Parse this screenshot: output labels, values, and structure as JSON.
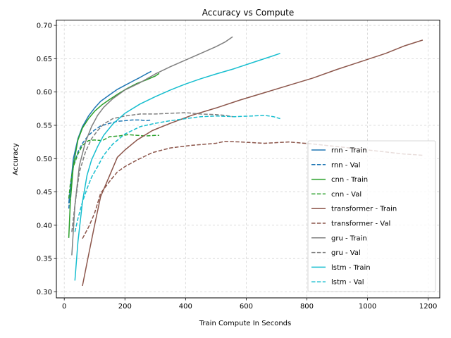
{
  "chart_data": {
    "type": "line",
    "title": "Accuracy vs Compute",
    "xlabel": "Train Compute In Seconds",
    "ylabel": "Accuracy",
    "xlim": [
      -26,
      1238
    ],
    "ylim": [
      0.291,
      0.708
    ],
    "xticks": [
      0,
      200,
      400,
      600,
      800,
      1000,
      1200
    ],
    "yticks": [
      0.3,
      0.35,
      0.4,
      0.45,
      0.5,
      0.55,
      0.6,
      0.65,
      0.7
    ],
    "xtick_labels": [
      "0",
      "200",
      "400",
      "600",
      "800",
      "1000",
      "1200"
    ],
    "ytick_labels": [
      "0.30",
      "0.35",
      "0.40",
      "0.45",
      "0.50",
      "0.55",
      "0.60",
      "0.65",
      "0.70"
    ],
    "grid": true,
    "legend_position": "lower-right",
    "series": [
      {
        "name": "rnn - Train",
        "color": "#1f77b4",
        "style": "solid",
        "x": [
          15,
          20,
          30,
          45,
          60,
          80,
          100,
          120,
          150,
          175,
          200,
          225,
          250,
          270,
          287
        ],
        "y": [
          0.433,
          0.455,
          0.5,
          0.53,
          0.548,
          0.564,
          0.576,
          0.586,
          0.596,
          0.604,
          0.61,
          0.616,
          0.622,
          0.627,
          0.631
        ]
      },
      {
        "name": "rnn - Val",
        "color": "#1f77b4",
        "style": "dashed",
        "x": [
          15,
          20,
          30,
          45,
          60,
          80,
          100,
          120,
          150,
          175,
          200,
          225,
          250,
          270,
          287
        ],
        "y": [
          0.425,
          0.45,
          0.488,
          0.51,
          0.523,
          0.535,
          0.543,
          0.549,
          0.553,
          0.556,
          0.557,
          0.558,
          0.558,
          0.557,
          0.558
        ]
      },
      {
        "name": "cnn - Train",
        "color": "#2ca02c",
        "style": "solid",
        "x": [
          15,
          20,
          30,
          45,
          60,
          80,
          100,
          125,
          150,
          180,
          210,
          240,
          270,
          300,
          313
        ],
        "y": [
          0.381,
          0.435,
          0.49,
          0.528,
          0.546,
          0.56,
          0.571,
          0.581,
          0.589,
          0.598,
          0.606,
          0.613,
          0.618,
          0.624,
          0.628
        ]
      },
      {
        "name": "cnn - Val",
        "color": "#2ca02c",
        "style": "dashed",
        "x": [
          15,
          20,
          30,
          45,
          60,
          80,
          100,
          125,
          150,
          180,
          210,
          240,
          270,
          300,
          313
        ],
        "y": [
          0.44,
          0.462,
          0.488,
          0.507,
          0.52,
          0.527,
          0.528,
          0.527,
          0.533,
          0.534,
          0.536,
          0.535,
          0.534,
          0.535,
          0.535
        ]
      },
      {
        "name": "transformer - Train",
        "color": "#8c564b",
        "style": "solid",
        "x": [
          60,
          80,
          100,
          120,
          150,
          175,
          200,
          240,
          290,
          350,
          420,
          500,
          580,
          660,
          740,
          820,
          900,
          980,
          1060,
          1120,
          1182
        ],
        "y": [
          0.309,
          0.355,
          0.4,
          0.443,
          0.475,
          0.502,
          0.513,
          0.528,
          0.542,
          0.553,
          0.565,
          0.576,
          0.588,
          0.599,
          0.61,
          0.621,
          0.634,
          0.646,
          0.658,
          0.669,
          0.678
        ]
      },
      {
        "name": "transformer - Val",
        "color": "#8c564b",
        "style": "dashed",
        "x": [
          60,
          80,
          100,
          120,
          150,
          175,
          200,
          240,
          290,
          350,
          420,
          500,
          530,
          580,
          660,
          740,
          820,
          900,
          980,
          1060,
          1120,
          1182
        ],
        "y": [
          0.38,
          0.397,
          0.418,
          0.448,
          0.466,
          0.48,
          0.488,
          0.498,
          0.509,
          0.516,
          0.52,
          0.523,
          0.526,
          0.525,
          0.523,
          0.525,
          0.522,
          0.518,
          0.514,
          0.51,
          0.507,
          0.505
        ]
      },
      {
        "name": "gru - Train",
        "color": "#7f7f7f",
        "style": "solid",
        "x": [
          25,
          35,
          50,
          70,
          90,
          110,
          130,
          160,
          200,
          250,
          300,
          350,
          400,
          450,
          500,
          530,
          555
        ],
        "y": [
          0.355,
          0.43,
          0.49,
          0.525,
          0.548,
          0.565,
          0.577,
          0.59,
          0.603,
          0.614,
          0.627,
          0.638,
          0.648,
          0.658,
          0.668,
          0.675,
          0.683
        ]
      },
      {
        "name": "gru - Val",
        "color": "#7f7f7f",
        "style": "dashed",
        "x": [
          25,
          35,
          50,
          70,
          90,
          110,
          130,
          160,
          200,
          250,
          300,
          350,
          400,
          450,
          500,
          530,
          555
        ],
        "y": [
          0.39,
          0.43,
          0.48,
          0.51,
          0.53,
          0.542,
          0.552,
          0.56,
          0.564,
          0.567,
          0.567,
          0.568,
          0.569,
          0.567,
          0.566,
          0.565,
          0.563
        ]
      },
      {
        "name": "lstm - Train",
        "color": "#17becf",
        "style": "solid",
        "x": [
          35,
          45,
          60,
          75,
          90,
          110,
          130,
          160,
          200,
          250,
          300,
          350,
          400,
          450,
          500,
          560,
          620,
          680,
          712
        ],
        "y": [
          0.317,
          0.375,
          0.435,
          0.475,
          0.498,
          0.518,
          0.535,
          0.552,
          0.568,
          0.582,
          0.593,
          0.603,
          0.612,
          0.62,
          0.627,
          0.635,
          0.644,
          0.653,
          0.658
        ]
      },
      {
        "name": "lstm - Val",
        "color": "#17becf",
        "style": "dashed",
        "x": [
          35,
          45,
          60,
          75,
          90,
          110,
          130,
          160,
          200,
          250,
          300,
          350,
          400,
          450,
          500,
          560,
          620,
          660,
          690,
          712
        ],
        "y": [
          0.39,
          0.41,
          0.435,
          0.455,
          0.472,
          0.488,
          0.505,
          0.522,
          0.537,
          0.548,
          0.553,
          0.557,
          0.56,
          0.563,
          0.564,
          0.563,
          0.564,
          0.565,
          0.563,
          0.56
        ]
      }
    ]
  }
}
